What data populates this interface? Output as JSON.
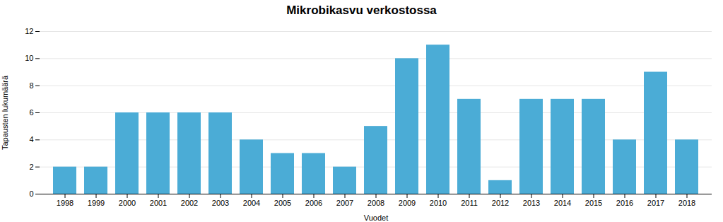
{
  "chart_data": {
    "type": "bar",
    "title": "Mikrobikasvu verkostossa",
    "xlabel": "Vuodet",
    "ylabel": "Tapausten lukumäärä",
    "categories": [
      "1998",
      "1999",
      "2000",
      "2001",
      "2002",
      "2003",
      "2004",
      "2005",
      "2006",
      "2007",
      "2008",
      "2009",
      "2010",
      "2011",
      "2012",
      "2013",
      "2014",
      "2015",
      "2016",
      "2017",
      "2018"
    ],
    "values": [
      2,
      2,
      6,
      6,
      6,
      6,
      4,
      3,
      3,
      2,
      5,
      10,
      11,
      7,
      1,
      7,
      7,
      7,
      4,
      9,
      4
    ],
    "color": "#4BACD6",
    "ylim": [
      0,
      12
    ],
    "yticks": [
      0,
      2,
      4,
      6,
      8,
      10,
      12
    ],
    "grid": true
  }
}
